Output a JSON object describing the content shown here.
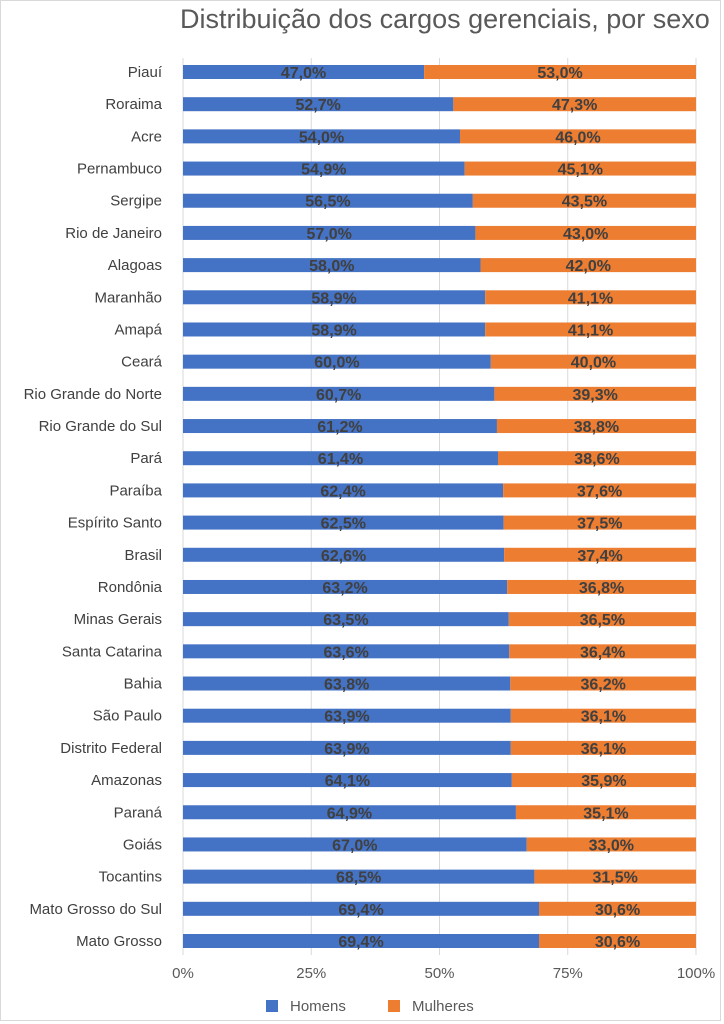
{
  "chart_data": {
    "type": "bar",
    "orientation": "horizontal",
    "stacked": "percent",
    "title": "Distribuição dos cargos gerenciais, por sexo",
    "categories": [
      "Piauí",
      "Roraima",
      "Acre",
      "Pernambuco",
      "Sergipe",
      "Rio de Janeiro",
      "Alagoas",
      "Maranhão",
      "Amapá",
      "Ceará",
      "Rio Grande do Norte",
      "Rio Grande do Sul",
      "Pará",
      "Paraíba",
      "Espírito Santo",
      "Brasil",
      "Rondônia",
      "Minas Gerais",
      "Santa Catarina",
      "Bahia",
      "São Paulo",
      "Distrito Federal",
      "Amazonas",
      "Paraná",
      "Goiás",
      "Tocantins",
      "Mato Grosso do Sul",
      "Mato Grosso"
    ],
    "series": [
      {
        "name": "Homens",
        "color": "#4472C4",
        "values": [
          47.0,
          52.7,
          54.0,
          54.9,
          56.5,
          57.0,
          58.0,
          58.9,
          58.9,
          60.0,
          60.7,
          61.2,
          61.4,
          62.4,
          62.5,
          62.6,
          63.2,
          63.5,
          63.6,
          63.8,
          63.9,
          63.9,
          64.1,
          64.9,
          67.0,
          68.5,
          69.4,
          69.4
        ],
        "labels": [
          "47,0%",
          "52,7%",
          "54,0%",
          "54,9%",
          "56,5%",
          "57,0%",
          "58,0%",
          "58,9%",
          "58,9%",
          "60,0%",
          "60,7%",
          "61,2%",
          "61,4%",
          "62,4%",
          "62,5%",
          "62,6%",
          "63,2%",
          "63,5%",
          "63,6%",
          "63,8%",
          "63,9%",
          "63,9%",
          "64,1%",
          "64,9%",
          "67,0%",
          "68,5%",
          "69,4%",
          "69,4%"
        ]
      },
      {
        "name": "Mulheres",
        "color": "#ED7D31",
        "values": [
          53.0,
          47.3,
          46.0,
          45.1,
          43.5,
          43.0,
          42.0,
          41.1,
          41.1,
          40.0,
          39.3,
          38.8,
          38.6,
          37.6,
          37.5,
          37.4,
          36.8,
          36.5,
          36.4,
          36.2,
          36.1,
          36.1,
          35.9,
          35.1,
          33.0,
          31.5,
          30.6,
          30.6
        ],
        "labels": [
          "53,0%",
          "47,3%",
          "46,0%",
          "45,1%",
          "43,5%",
          "43,0%",
          "42,0%",
          "41,1%",
          "41,1%",
          "40,0%",
          "39,3%",
          "38,8%",
          "38,6%",
          "37,6%",
          "37,5%",
          "37,4%",
          "36,8%",
          "36,5%",
          "36,4%",
          "36,2%",
          "36,1%",
          "36,1%",
          "35,9%",
          "35,1%",
          "33,0%",
          "31,5%",
          "30,6%",
          "30,6%"
        ]
      }
    ],
    "xlim": [
      0,
      100
    ],
    "xticks": [
      "0%",
      "25%",
      "50%",
      "75%",
      "100%"
    ],
    "grid": true,
    "legend_position": "bottom"
  }
}
